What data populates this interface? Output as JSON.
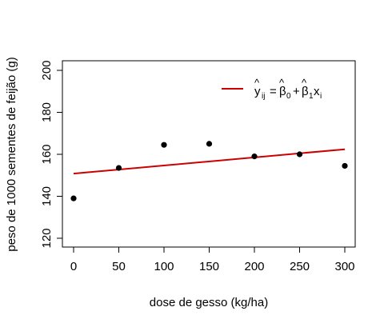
{
  "chart_data": {
    "type": "scatter",
    "xlabel": "dose de gesso (kg/ha)",
    "ylabel": "peso de 1000 sementes de feijão (g)",
    "xlim": [
      0,
      300
    ],
    "ylim": [
      120,
      200
    ],
    "xticks": [
      0,
      50,
      100,
      150,
      200,
      250,
      300
    ],
    "yticks": [
      120,
      140,
      160,
      180,
      200
    ],
    "grid": false,
    "legend_position": "top-right",
    "points": {
      "x": [
        0,
        50,
        100,
        150,
        200,
        250,
        300
      ],
      "y": [
        139.0,
        153.5,
        164.5,
        165.0,
        159.0,
        160.0,
        154.5
      ]
    },
    "fit_line": {
      "x": [
        0,
        300
      ],
      "y": [
        150.8,
        162.4
      ],
      "color": "#cc0000"
    },
    "legend_label": "ŷij = β̂0 + β̂1xi",
    "point_color": "#000000"
  }
}
